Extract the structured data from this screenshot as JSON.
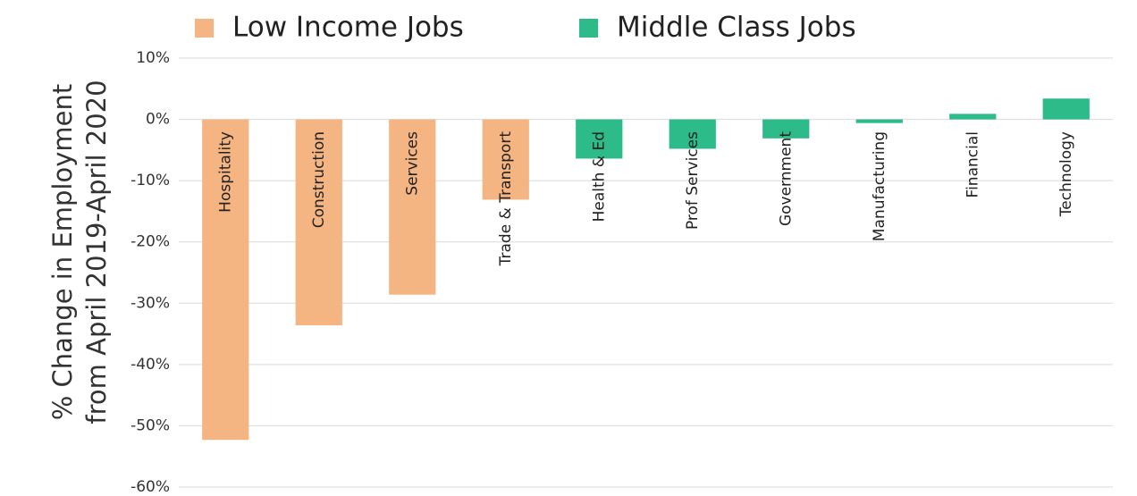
{
  "chart_data": {
    "type": "bar",
    "categories": [
      "Hospitality",
      "Construction",
      "Services",
      "Trade & Transport",
      "Health & Ed",
      "Prof Services",
      "Government",
      "Manufacturing",
      "Financial",
      "Technology"
    ],
    "series": [
      {
        "name": "Low Income Jobs",
        "color": "#f5b583",
        "values": [
          -52.3,
          -33.6,
          -28.6,
          -13.1,
          null,
          null,
          null,
          null,
          null,
          null
        ]
      },
      {
        "name": "Middle Class Jobs",
        "color": "#2dbb8a",
        "values": [
          null,
          null,
          null,
          null,
          -6.4,
          -4.8,
          -3.1,
          -0.6,
          0.9,
          3.4
        ]
      }
    ],
    "ylabel": [
      "% Change in Employment",
      "from April 2019-April 2020"
    ],
    "ylim": [
      -60,
      10
    ],
    "yticks": [
      {
        "value": -60,
        "label": "-60%"
      },
      {
        "value": -50,
        "label": "-50%"
      },
      {
        "value": -40,
        "label": "-40%"
      },
      {
        "value": -30,
        "label": "-30%"
      },
      {
        "value": -20,
        "label": "-20%"
      },
      {
        "value": -10,
        "label": "-10%"
      },
      {
        "value": 0,
        "label": "0%"
      },
      {
        "value": 10,
        "label": "10%"
      }
    ],
    "grid": true,
    "legend": "top"
  }
}
